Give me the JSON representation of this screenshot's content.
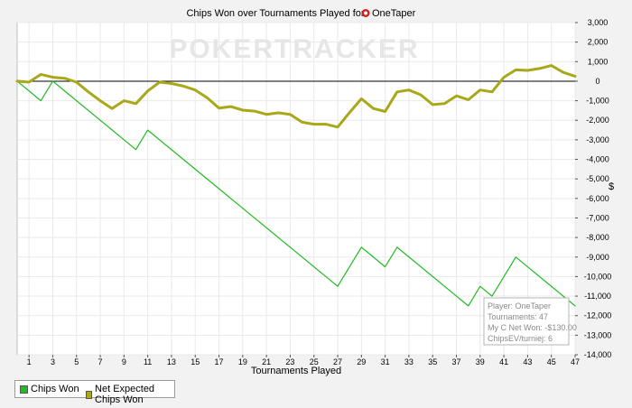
{
  "chart_data": {
    "type": "line",
    "title": "Chips Won over Tournaments Played for",
    "player_name": "OneTaper",
    "watermark": "POKERTRACKER",
    "xlabel": "Tournaments Played",
    "ylabel": "$",
    "xlim": [
      0,
      47
    ],
    "ylim": [
      -14000,
      3000
    ],
    "x_ticks": [
      1,
      3,
      5,
      7,
      9,
      11,
      13,
      15,
      17,
      19,
      21,
      23,
      25,
      27,
      29,
      31,
      33,
      35,
      37,
      39,
      41,
      43,
      45,
      47
    ],
    "y_ticks": [
      3000,
      2000,
      1000,
      0,
      -1000,
      -2000,
      -3000,
      -4000,
      -5000,
      -6000,
      -7000,
      -8000,
      -9000,
      -10000,
      -11000,
      -12000,
      -13000,
      -14000
    ],
    "y_tick_labels": [
      "3,000",
      "2,000",
      "1,000",
      "0",
      "-1,000",
      "-2,000",
      "-3,000",
      "-4,000",
      "-5,000",
      "-6,000",
      "-7,000",
      "-8,000",
      "-9,000",
      "-10,000",
      "-11,000",
      "-12,000",
      "-13,000",
      "-14,000"
    ],
    "series": [
      {
        "name": "Chips Won",
        "color": "#22bb22",
        "points": [
          [
            0,
            0
          ],
          [
            2,
            -1000
          ],
          [
            3,
            0
          ],
          [
            10,
            -3500
          ],
          [
            11,
            -2500
          ],
          [
            27,
            -10500
          ],
          [
            29,
            -8500
          ],
          [
            31,
            -9500
          ],
          [
            32,
            -8500
          ],
          [
            38,
            -11500
          ],
          [
            39,
            -10500
          ],
          [
            40,
            -11000
          ],
          [
            42,
            -9000
          ],
          [
            47,
            -11500
          ]
        ]
      },
      {
        "name": "Net Expected Chips Won",
        "color": "#a8a81a",
        "points": [
          [
            0,
            0
          ],
          [
            1,
            -50
          ],
          [
            2,
            350
          ],
          [
            3,
            200
          ],
          [
            4,
            150
          ],
          [
            5,
            -50
          ],
          [
            6,
            -550
          ],
          [
            7,
            -1000
          ],
          [
            8,
            -1400
          ],
          [
            9,
            -1000
          ],
          [
            10,
            -1150
          ],
          [
            11,
            -500
          ],
          [
            12,
            -50
          ],
          [
            13,
            -120
          ],
          [
            14,
            -250
          ],
          [
            15,
            -450
          ],
          [
            16,
            -850
          ],
          [
            17,
            -1380
          ],
          [
            18,
            -1300
          ],
          [
            19,
            -1480
          ],
          [
            20,
            -1530
          ],
          [
            21,
            -1700
          ],
          [
            22,
            -1620
          ],
          [
            23,
            -1700
          ],
          [
            24,
            -2100
          ],
          [
            25,
            -2200
          ],
          [
            26,
            -2200
          ],
          [
            27,
            -2350
          ],
          [
            28,
            -1600
          ],
          [
            29,
            -900
          ],
          [
            30,
            -1400
          ],
          [
            31,
            -1550
          ],
          [
            32,
            -550
          ],
          [
            33,
            -450
          ],
          [
            34,
            -700
          ],
          [
            35,
            -1200
          ],
          [
            36,
            -1150
          ],
          [
            37,
            -750
          ],
          [
            38,
            -950
          ],
          [
            39,
            -450
          ],
          [
            40,
            -550
          ],
          [
            41,
            200
          ],
          [
            42,
            580
          ],
          [
            43,
            550
          ],
          [
            44,
            650
          ],
          [
            45,
            800
          ],
          [
            46,
            450
          ],
          [
            47,
            250
          ]
        ]
      }
    ],
    "tooltip": {
      "lines": [
        "Player: OneTaper",
        "Tournaments: 47",
        "My C Net Won: -$130.00",
        "ChipsEV/turniej: 6"
      ]
    },
    "legend": [
      "Chips Won",
      "Net Expected Chips Won"
    ],
    "legend_position": "bottom-left",
    "grid": true
  }
}
